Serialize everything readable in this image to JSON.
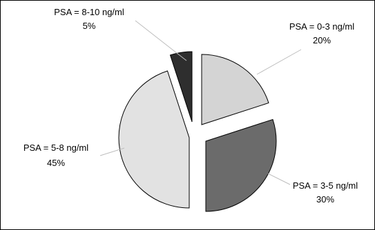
{
  "chart_data": {
    "type": "pie",
    "title": "",
    "start_angle_deg": 0,
    "direction": "clockwise",
    "colors": {
      "text": "#000000",
      "outline": "#000000",
      "leader": "#bdbdbd"
    },
    "slices": [
      {
        "label": "PSA = 0-3 ng/ml",
        "value": 20,
        "value_label": "20%",
        "color": "#d4d4d4",
        "exploded": false
      },
      {
        "label": "PSA = 3-5 ng/ml",
        "value": 30,
        "value_label": "30%",
        "color": "#6b6b6b",
        "exploded": true
      },
      {
        "label": "PSA = 5-8 ng/ml",
        "value": 45,
        "value_label": "45%",
        "color": "#e2e2e2",
        "exploded": true
      },
      {
        "label": "PSA = 8-10 ng/ml",
        "value": 5,
        "value_label": "5%",
        "color": "#2e2e2e",
        "exploded": true
      }
    ]
  }
}
